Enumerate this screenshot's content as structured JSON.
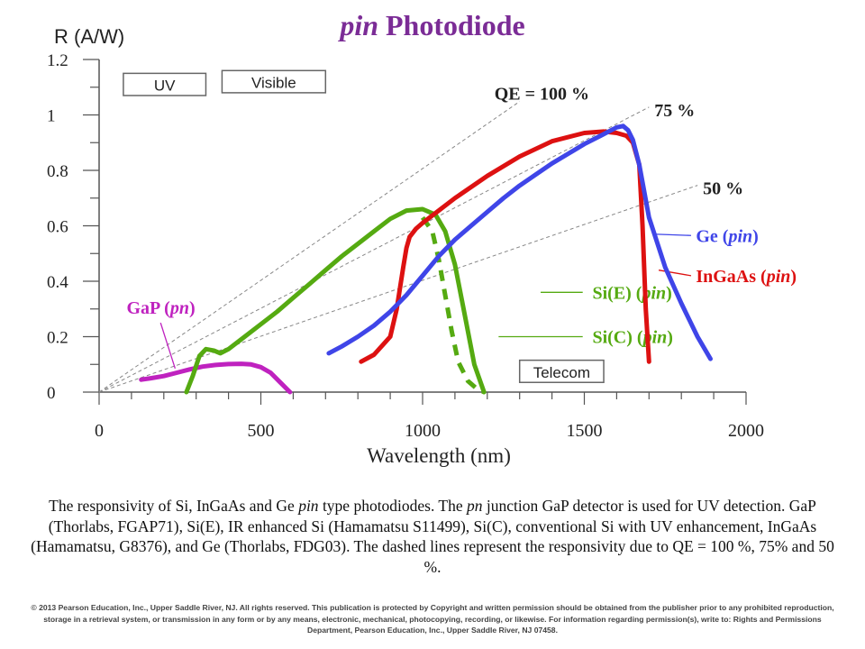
{
  "page": {
    "title_italic": "pin",
    "title_rest": " Photodiode",
    "caption": [
      {
        "t": "The responsivity of Si, InGaAs and Ge "
      },
      {
        "t": "pin",
        "i": true
      },
      {
        "t": " type photodiodes. The "
      },
      {
        "t": "pn",
        "i": true
      },
      {
        "t": " junction GaP detector is used for UV detection. GaP (Thorlabs, FGAP71), Si(E), IR enhanced Si (Hamamatsu  S11499), Si(C), conventional Si with UV enhancement, InGaAs (Hamamatsu,  G8376), and Ge (Thorlabs, FDG03). The dashed lines represent the responsivity due to QE = 100 %, 75% and 50 %."
      }
    ],
    "copyright": "© 2013 Pearson Education, Inc., Upper Saddle River, NJ. All rights reserved. This publication is protected by Copyright and written permission should be obtained from the publisher prior to any prohibited reproduction, storage in a retrieval system, or transmission in any form or by any means, electronic, mechanical, photocopying, recording, or likewise. For information regarding permission(s), write to: Rights and Permissions Department, Pearson Education, Inc., Upper Saddle River, NJ 07458."
  },
  "chart_data": {
    "type": "line",
    "title": "pin Photodiode",
    "xlabel": "Wavelength (nm)",
    "ylabel": "R (A/W)",
    "xlim": [
      0,
      2000
    ],
    "ylim": [
      0,
      1.2
    ],
    "xticks": [
      0,
      500,
      1000,
      1500,
      2000
    ],
    "xtick_labels": [
      "0",
      "500",
      "1000",
      "1500",
      "2000"
    ],
    "yticks": [
      0,
      0.2,
      0.4,
      0.6,
      0.8,
      1,
      1.2
    ],
    "ytick_labels": [
      "0",
      "0.2",
      "0.4",
      "0.6",
      "0.8",
      "1",
      "1.2"
    ],
    "grid": false,
    "region_boxes": [
      {
        "label": "UV",
        "x0": 75,
        "x1": 330,
        "y_top": 1.15,
        "y_bot": 1.07
      },
      {
        "label": "Visible",
        "x0": 380,
        "x1": 700,
        "y_top": 1.16,
        "y_bot": 1.08
      },
      {
        "label": "Telecom",
        "x0": 1300,
        "x1": 1560,
        "y_top": 0.115,
        "y_bot": 0.035
      }
    ],
    "qe_lines": [
      {
        "label": "QE = 100 %",
        "qe": 1.0,
        "x_end": 1300
      },
      {
        "label": "75 %",
        "qe": 0.75,
        "x_end": 1700
      },
      {
        "label": "50 %",
        "qe": 0.5,
        "x_end": 1850
      }
    ],
    "series": [
      {
        "name": "GaP (pn)",
        "name_main": "GaP (",
        "name_italic": "pn",
        "color": "#bf22bf",
        "dashed": false,
        "label_pos": [
          85,
          0.305
        ],
        "leader": [
          [
            190,
            0.25
          ],
          [
            235,
            0.085
          ]
        ],
        "x": [
          130,
          160,
          200,
          240,
          280,
          320,
          360,
          400,
          440,
          470,
          500,
          530,
          560,
          590
        ],
        "y": [
          0.045,
          0.05,
          0.058,
          0.07,
          0.082,
          0.092,
          0.098,
          0.101,
          0.102,
          0.1,
          0.09,
          0.07,
          0.035,
          0.0
        ]
      },
      {
        "name": "Si(E) (pin)",
        "name_main": "Si(E) (",
        "name_italic": "pin",
        "color": "#55aa11",
        "dashed": false,
        "label_pos": [
          1525,
          0.36
        ],
        "leader": [
          [
            1365,
            0.36
          ],
          [
            1495,
            0.36
          ]
        ],
        "x": [
          270,
          290,
          310,
          330,
          355,
          375,
          400,
          450,
          500,
          550,
          600,
          650,
          700,
          750,
          800,
          850,
          900,
          950,
          1000,
          1040,
          1070,
          1100,
          1130,
          1160,
          1190
        ],
        "y": [
          0.0,
          0.06,
          0.13,
          0.155,
          0.15,
          0.14,
          0.155,
          0.2,
          0.245,
          0.29,
          0.34,
          0.39,
          0.44,
          0.49,
          0.535,
          0.58,
          0.625,
          0.655,
          0.66,
          0.64,
          0.58,
          0.46,
          0.28,
          0.1,
          0.0
        ]
      },
      {
        "name": "Si(C) (pin)",
        "name_main": "Si(C) (",
        "name_italic": "pin",
        "color": "#55aa11",
        "dashed": true,
        "label_pos": [
          1525,
          0.2
        ],
        "leader": [
          [
            1235,
            0.2
          ],
          [
            1495,
            0.2
          ]
        ],
        "x": [
          1000,
          1030,
          1050,
          1070,
          1090,
          1110,
          1140,
          1170,
          1190
        ],
        "y": [
          0.63,
          0.58,
          0.48,
          0.35,
          0.22,
          0.11,
          0.04,
          0.01,
          0.0
        ]
      },
      {
        "name": "InGaAs (pin)",
        "name_main": "InGaAs (",
        "name_italic": "pin",
        "color": "#dd1111",
        "dashed": false,
        "label_pos": [
          1845,
          0.42
        ],
        "leader": [
          [
            1730,
            0.44
          ],
          [
            1830,
            0.42
          ]
        ],
        "x": [
          810,
          850,
          900,
          920,
          940,
          950,
          960,
          980,
          1000,
          1050,
          1100,
          1200,
          1300,
          1400,
          1500,
          1560,
          1600,
          1630,
          1650,
          1670,
          1680,
          1690,
          1700
        ],
        "y": [
          0.11,
          0.135,
          0.2,
          0.3,
          0.45,
          0.52,
          0.56,
          0.59,
          0.61,
          0.655,
          0.7,
          0.78,
          0.85,
          0.905,
          0.935,
          0.94,
          0.935,
          0.925,
          0.9,
          0.82,
          0.6,
          0.3,
          0.11
        ]
      },
      {
        "name": "Ge (pin)",
        "name_main": "Ge (",
        "name_italic": "pin",
        "color": "#3f45e8",
        "dashed": false,
        "label_pos": [
          1845,
          0.565
        ],
        "leader": [
          [
            1715,
            0.57
          ],
          [
            1830,
            0.565
          ]
        ],
        "x": [
          710,
          750,
          800,
          850,
          900,
          950,
          1000,
          1050,
          1100,
          1150,
          1200,
          1250,
          1300,
          1350,
          1400,
          1450,
          1500,
          1550,
          1600,
          1620,
          1635,
          1650,
          1670,
          1700,
          1750,
          1800,
          1850,
          1890
        ],
        "y": [
          0.14,
          0.165,
          0.2,
          0.24,
          0.29,
          0.35,
          0.42,
          0.49,
          0.55,
          0.6,
          0.65,
          0.7,
          0.745,
          0.785,
          0.825,
          0.86,
          0.895,
          0.925,
          0.955,
          0.96,
          0.945,
          0.91,
          0.82,
          0.63,
          0.45,
          0.32,
          0.2,
          0.12
        ]
      }
    ]
  }
}
